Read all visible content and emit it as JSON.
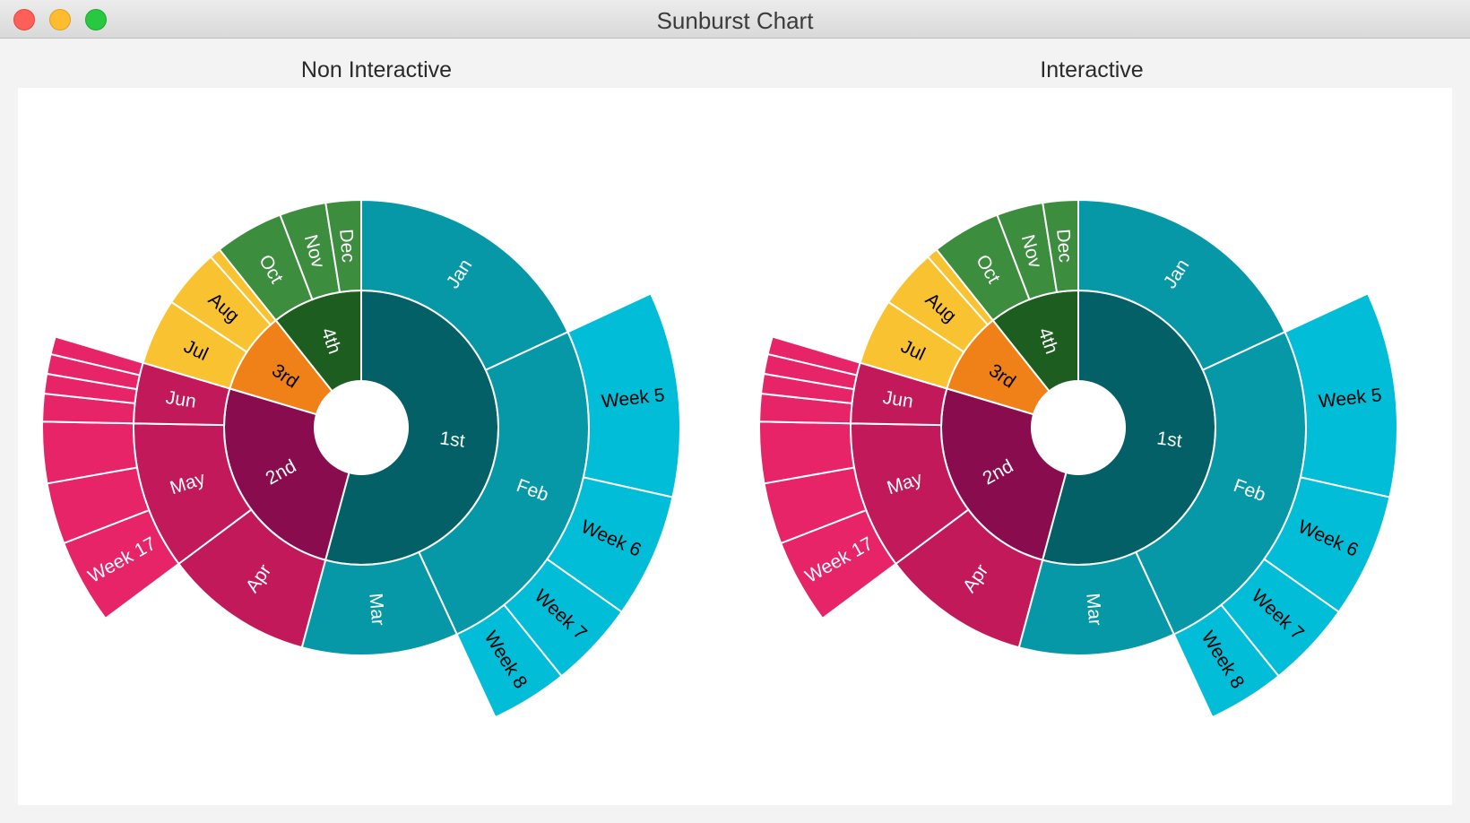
{
  "window": {
    "title": "Sunburst Chart"
  },
  "panels": [
    {
      "id": "left",
      "title": "Non Interactive"
    },
    {
      "id": "right",
      "title": "Interactive"
    }
  ],
  "colors": {
    "q1": "#036066",
    "q1_month": "#0798a8",
    "q1_week": "#01bdd7",
    "q2": "#890d4e",
    "q2_month": "#c2195b",
    "q2_week": "#e72468",
    "q3": "#f08119",
    "q3_month": "#f8c231",
    "q4": "#1d5e20",
    "q4_month": "#3d8d3f"
  },
  "chart_data": [
    {
      "type": "sunburst",
      "title": "Non Interactive",
      "levels": [
        "quarter",
        "month",
        "week"
      ],
      "quarters": [
        {
          "label": "1st",
          "value": 0.542,
          "color_key": "q1",
          "label_color": "#ffffff",
          "months": [
            {
              "label": "Jan",
              "value": 0.181,
              "color_key": "q1_month",
              "label_color": "#ffffff",
              "weeks": []
            },
            {
              "label": "Feb",
              "value": 0.25,
              "color_key": "q1_month",
              "label_color": "#ffffff",
              "weeks": [
                {
                  "label": "Week 5",
                  "value": 0.104,
                  "color_key": "q1_week",
                  "label_color": "#000000"
                },
                {
                  "label": "Week 6",
                  "value": 0.063,
                  "color_key": "q1_week",
                  "label_color": "#000000"
                },
                {
                  "label": "Week 7",
                  "value": 0.044,
                  "color_key": "q1_week",
                  "label_color": "#000000"
                },
                {
                  "label": "Week 8",
                  "value": 0.039,
                  "color_key": "q1_week",
                  "label_color": "#000000"
                }
              ]
            },
            {
              "label": "Mar",
              "value": 0.111,
              "color_key": "q1_month",
              "label_color": "#ffffff",
              "weeks": []
            }
          ]
        },
        {
          "label": "2nd",
          "value": 0.254,
          "color_key": "q2",
          "label_color": "#ffffff",
          "months": [
            {
              "label": "Apr",
              "value": 0.106,
              "color_key": "q2_month",
              "label_color": "#ffffff",
              "weeks": []
            },
            {
              "label": "May",
              "value": 0.105,
              "color_key": "q2_month",
              "label_color": "#ffffff",
              "weeks": [
                {
                  "label": "Week 17",
                  "value": 0.043,
                  "color_key": "q2_week",
                  "label_color": "#ffffff"
                },
                {
                  "label": "",
                  "value": 0.031,
                  "color_key": "q2_week",
                  "label_color": "#ffffff"
                },
                {
                  "label": "",
                  "value": 0.031,
                  "color_key": "q2_week",
                  "label_color": "#ffffff"
                }
              ]
            },
            {
              "label": "Jun",
              "value": 0.043,
              "color_key": "q2_month",
              "label_color": "#ffffff",
              "weeks": [
                {
                  "label": "",
                  "value": 0.014,
                  "color_key": "q2_week",
                  "label_color": "#ffffff"
                },
                {
                  "label": "",
                  "value": 0.01,
                  "color_key": "q2_week",
                  "label_color": "#ffffff"
                },
                {
                  "label": "",
                  "value": 0.01,
                  "color_key": "q2_week",
                  "label_color": "#ffffff"
                },
                {
                  "label": "",
                  "value": 0.009,
                  "color_key": "q2_week",
                  "label_color": "#ffffff"
                }
              ]
            }
          ]
        },
        {
          "label": "3rd",
          "value": 0.097,
          "color_key": "q3",
          "label_color": "#000000",
          "months": [
            {
              "label": "Jul",
              "value": 0.047,
              "color_key": "q3_month",
              "label_color": "#000000",
              "weeks": []
            },
            {
              "label": "Aug",
              "value": 0.042,
              "color_key": "q3_month",
              "label_color": "#000000",
              "weeks": []
            },
            {
              "label": "",
              "value": 0.008,
              "color_key": "q3_month",
              "label_color": "#000000",
              "weeks": []
            }
          ]
        },
        {
          "label": "4th",
          "value": 0.107,
          "color_key": "q4",
          "label_color": "#ffffff",
          "months": [
            {
              "label": "Oct",
              "value": 0.049,
              "color_key": "q4_month",
              "label_color": "#ffffff",
              "weeks": []
            },
            {
              "label": "Nov",
              "value": 0.033,
              "color_key": "q4_month",
              "label_color": "#ffffff",
              "weeks": []
            },
            {
              "label": "Dec",
              "value": 0.025,
              "color_key": "q4_month",
              "label_color": "#ffffff",
              "weeks": []
            }
          ]
        }
      ]
    },
    {
      "type": "sunburst",
      "title": "Interactive",
      "levels": [
        "quarter",
        "month",
        "week"
      ],
      "quarters": [
        {
          "label": "1st",
          "value": 0.542,
          "color_key": "q1",
          "label_color": "#ffffff",
          "months": [
            {
              "label": "Jan",
              "value": 0.181,
              "color_key": "q1_month",
              "label_color": "#ffffff",
              "weeks": []
            },
            {
              "label": "Feb",
              "value": 0.25,
              "color_key": "q1_month",
              "label_color": "#ffffff",
              "weeks": [
                {
                  "label": "Week 5",
                  "value": 0.104,
                  "color_key": "q1_week",
                  "label_color": "#000000"
                },
                {
                  "label": "Week 6",
                  "value": 0.063,
                  "color_key": "q1_week",
                  "label_color": "#000000"
                },
                {
                  "label": "Week 7",
                  "value": 0.044,
                  "color_key": "q1_week",
                  "label_color": "#000000"
                },
                {
                  "label": "Week 8",
                  "value": 0.039,
                  "color_key": "q1_week",
                  "label_color": "#000000"
                }
              ]
            },
            {
              "label": "Mar",
              "value": 0.111,
              "color_key": "q1_month",
              "label_color": "#ffffff",
              "weeks": []
            }
          ]
        },
        {
          "label": "2nd",
          "value": 0.254,
          "color_key": "q2",
          "label_color": "#ffffff",
          "months": [
            {
              "label": "Apr",
              "value": 0.106,
              "color_key": "q2_month",
              "label_color": "#ffffff",
              "weeks": []
            },
            {
              "label": "May",
              "value": 0.105,
              "color_key": "q2_month",
              "label_color": "#ffffff",
              "weeks": [
                {
                  "label": "Week 17",
                  "value": 0.043,
                  "color_key": "q2_week",
                  "label_color": "#ffffff"
                },
                {
                  "label": "",
                  "value": 0.031,
                  "color_key": "q2_week",
                  "label_color": "#ffffff"
                },
                {
                  "label": "",
                  "value": 0.031,
                  "color_key": "q2_week",
                  "label_color": "#ffffff"
                }
              ]
            },
            {
              "label": "Jun",
              "value": 0.043,
              "color_key": "q2_month",
              "label_color": "#ffffff",
              "weeks": [
                {
                  "label": "",
                  "value": 0.014,
                  "color_key": "q2_week",
                  "label_color": "#ffffff"
                },
                {
                  "label": "",
                  "value": 0.01,
                  "color_key": "q2_week",
                  "label_color": "#ffffff"
                },
                {
                  "label": "",
                  "value": 0.01,
                  "color_key": "q2_week",
                  "label_color": "#ffffff"
                },
                {
                  "label": "",
                  "value": 0.009,
                  "color_key": "q2_week",
                  "label_color": "#ffffff"
                }
              ]
            }
          ]
        },
        {
          "label": "3rd",
          "value": 0.097,
          "color_key": "q3",
          "label_color": "#000000",
          "months": [
            {
              "label": "Jul",
              "value": 0.047,
              "color_key": "q3_month",
              "label_color": "#000000",
              "weeks": []
            },
            {
              "label": "Aug",
              "value": 0.042,
              "color_key": "q3_month",
              "label_color": "#000000",
              "weeks": []
            },
            {
              "label": "",
              "value": 0.008,
              "color_key": "q3_month",
              "label_color": "#000000",
              "weeks": []
            }
          ]
        },
        {
          "label": "4th",
          "value": 0.107,
          "color_key": "q4",
          "label_color": "#ffffff",
          "months": [
            {
              "label": "Oct",
              "value": 0.049,
              "color_key": "q4_month",
              "label_color": "#ffffff",
              "weeks": []
            },
            {
              "label": "Nov",
              "value": 0.033,
              "color_key": "q4_month",
              "label_color": "#ffffff",
              "weeks": []
            },
            {
              "label": "Dec",
              "value": 0.025,
              "color_key": "q4_month",
              "label_color": "#ffffff",
              "weeks": []
            }
          ]
        }
      ]
    }
  ]
}
